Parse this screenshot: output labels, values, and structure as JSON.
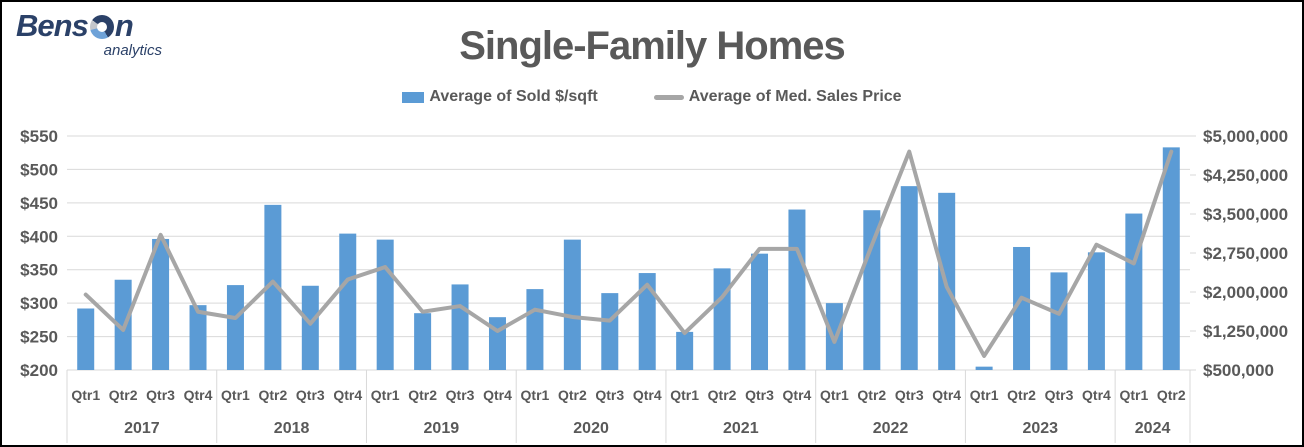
{
  "logo": {
    "brand_prefix": "Bens",
    "brand_suffix": "n",
    "tagline": "analytics",
    "navy": "#2b4168",
    "light_blue": "#6ea2d8",
    "gray": "#c3c6cb"
  },
  "header": {
    "title": "Single-Family Homes",
    "title_color": "#595959"
  },
  "legend": {
    "position": "top",
    "items": [
      {
        "label": "Average of Sold $/sqft",
        "marker": "bar",
        "color": "#5B9BD5"
      },
      {
        "label": "Average of Med. Sales Price",
        "marker": "line",
        "color": "#A6A6A6"
      }
    ]
  },
  "chart_data": {
    "type": "bar+line",
    "title": "Single-Family Homes",
    "grid": true,
    "legend_position": "top",
    "text_color": "#595959",
    "grid_color": "#D9D9D9",
    "categories_years": [
      {
        "label": "2017",
        "quarters": [
          "Qtr1",
          "Qtr2",
          "Qtr3",
          "Qtr4"
        ]
      },
      {
        "label": "2018",
        "quarters": [
          "Qtr1",
          "Qtr2",
          "Qtr3",
          "Qtr4"
        ]
      },
      {
        "label": "2019",
        "quarters": [
          "Qtr1",
          "Qtr2",
          "Qtr3",
          "Qtr4"
        ]
      },
      {
        "label": "2020",
        "quarters": [
          "Qtr1",
          "Qtr2",
          "Qtr3",
          "Qtr4"
        ]
      },
      {
        "label": "2021",
        "quarters": [
          "Qtr1",
          "Qtr2",
          "Qtr3",
          "Qtr4"
        ]
      },
      {
        "label": "2022",
        "quarters": [
          "Qtr1",
          "Qtr2",
          "Qtr3",
          "Qtr4"
        ]
      },
      {
        "label": "2023",
        "quarters": [
          "Qtr1",
          "Qtr2",
          "Qtr3",
          "Qtr4"
        ]
      },
      {
        "label": "2024",
        "quarters": [
          "Qtr1",
          "Qtr2"
        ]
      }
    ],
    "series": [
      {
        "name": "Average of Sold $/sqft",
        "type": "bar",
        "axis": "left",
        "color": "#5B9BD5",
        "values": [
          292,
          335,
          396,
          297,
          327,
          447,
          326,
          404,
          395,
          285,
          328,
          279,
          321,
          395,
          315,
          345,
          257,
          352,
          374,
          440,
          300,
          439,
          475,
          465,
          205,
          384,
          346,
          376,
          434,
          533
        ]
      },
      {
        "name": "Average of Med. Sales Price",
        "type": "line",
        "axis": "right",
        "color": "#A6A6A6",
        "values": [
          1950000,
          1270000,
          3100000,
          1620000,
          1500000,
          2200000,
          1390000,
          2240000,
          2480000,
          1620000,
          1730000,
          1250000,
          1660000,
          1520000,
          1450000,
          2140000,
          1210000,
          1900000,
          2830000,
          2830000,
          1040000,
          2900000,
          4700000,
          2100000,
          770000,
          1890000,
          1580000,
          2910000,
          2550000,
          4700000
        ]
      }
    ],
    "left_axis": {
      "min": 200,
      "max": 550,
      "step": 50,
      "tick_labels": [
        "$550",
        "$500",
        "$450",
        "$400",
        "$350",
        "$300",
        "$250",
        "$200"
      ]
    },
    "right_axis": {
      "min": 500000,
      "max": 5000000,
      "step": 750000,
      "tick_labels": [
        "$5,000,000",
        "$4,250,000",
        "$3,500,000",
        "$2,750,000",
        "$2,000,000",
        "$1,250,000",
        "$500,000"
      ]
    }
  }
}
